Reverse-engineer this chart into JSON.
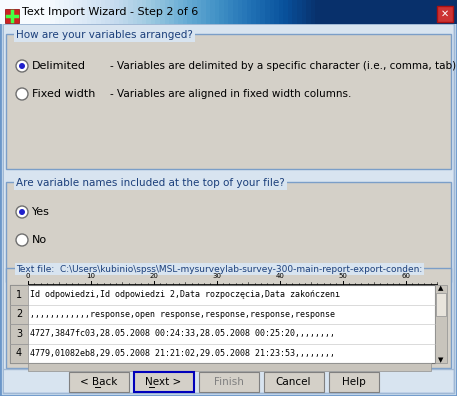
{
  "title": "Text Import Wizard - Step 2 of 6",
  "titlebar_color1": "#7BA7D4",
  "titlebar_color2": "#C5D9EE",
  "dialog_bg": "#D4D0C8",
  "inner_bg": "#ECE9D8",
  "section_bg": "#D4D0C8",
  "section_border": "#7B9EC8",
  "section_label_color": "#1B3F7B",
  "section1_title": "How are your variables arranged?",
  "section2_title": "Are variable names included at the top of your file?",
  "section3_title": "Text file:  C:\\Users\\kubinio\\spss\\MSL-mysurveylab-survey-300-main-report-export-conden:",
  "radio1_label": "Delimited",
  "radio1_desc": "- Variables are delimited by a specific character (i.e., comma, tab).",
  "radio2_label": "Fixed width",
  "radio2_desc": "- Variables are aligned in fixed width columns.",
  "radio3_label": "Yes",
  "radio4_label": "No",
  "ruler_ticks": [
    0,
    10,
    20,
    30,
    40,
    50,
    60
  ],
  "data_rows": [
    {
      "num": "1",
      "text": "Id odpowiedzi,Id odpowiedzi 2,Data rozpoczęcia,Data zakończenı"
    },
    {
      "num": "2",
      "text": ",,,,,,,,,,,,response,open response,response,response,response"
    },
    {
      "num": "3",
      "text": "4727,3847fc03,28.05.2008 00:24:33,28.05.2008 00:25:20,,,,,,,,"
    },
    {
      "num": "4",
      "text": "4779,01082eb8,29.05.2008 21:21:02,29.05.2008 21:23:53,,,,,,,,"
    }
  ],
  "buttons": [
    "< Back",
    "Next >",
    "Finish",
    "Cancel",
    "Help"
  ],
  "outer_border_color": "#6B96C8",
  "white": "#FFFFFF",
  "gray_scrollbar": "#C8C4BC",
  "row_num_bg": "#C8C4BC"
}
